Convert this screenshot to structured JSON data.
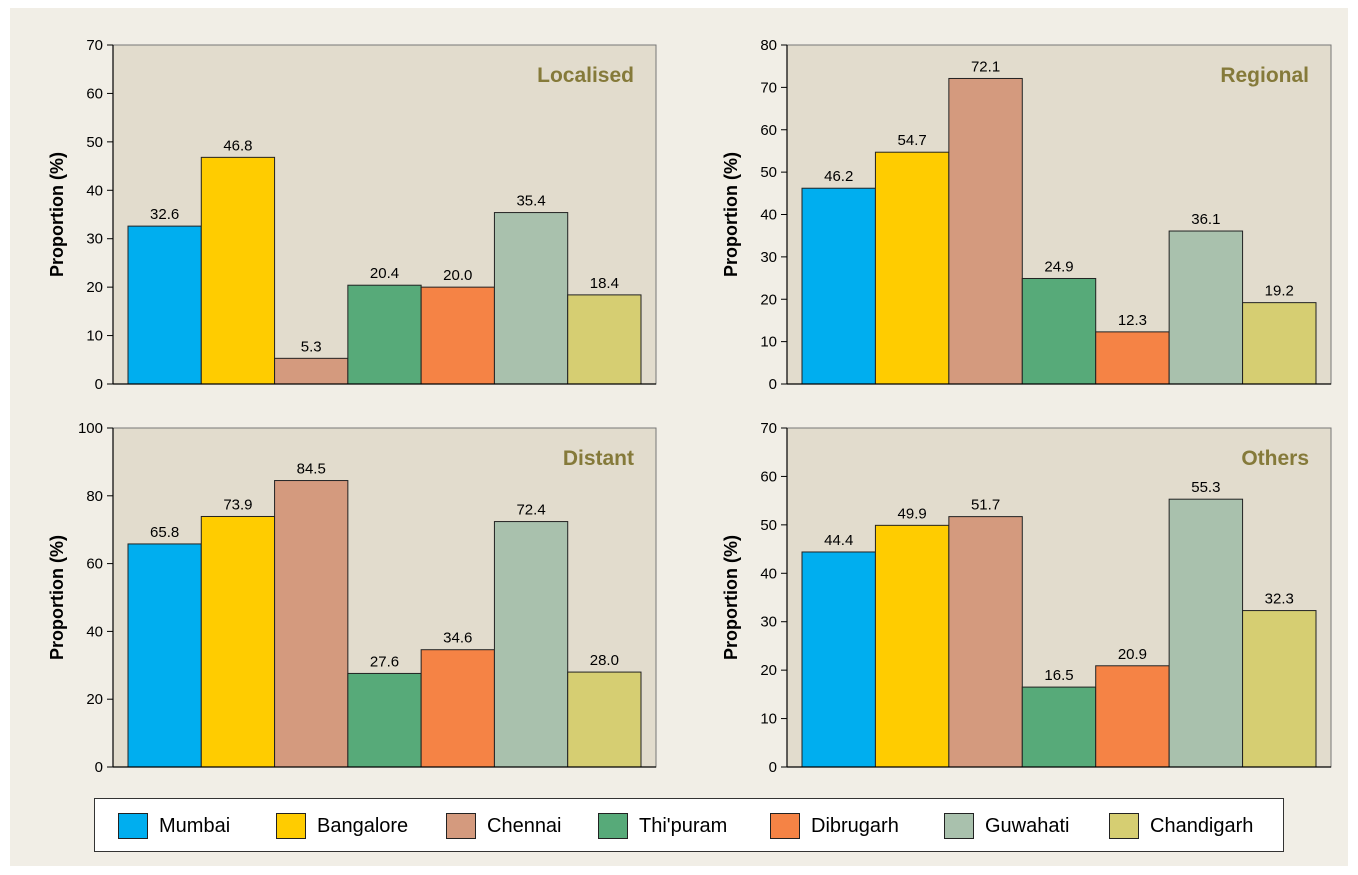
{
  "categories": [
    "Mumbai",
    "Bangalore",
    "Chennai",
    "Thi'puram",
    "Dibrugarh",
    "Guwahati",
    "Chandigarh"
  ],
  "colors": [
    "#00aeef",
    "#ffcc00",
    "#d49a7e",
    "#57aa79",
    "#f58345",
    "#a9c1ad",
    "#d6ce72"
  ],
  "chart_data": [
    {
      "type": "bar",
      "title": "Localised",
      "ylabel": "Proportion (%)",
      "ylim": [
        0,
        70
      ],
      "yticks": [
        0,
        10,
        20,
        30,
        40,
        50,
        60,
        70
      ],
      "categories": [
        "Mumbai",
        "Bangalore",
        "Chennai",
        "Thi'puram",
        "Dibrugarh",
        "Guwahati",
        "Chandigarh"
      ],
      "values": [
        32.6,
        46.8,
        5.3,
        20.4,
        20.0,
        35.4,
        18.4
      ],
      "data_labels": [
        "32.6",
        "46.8",
        "5.3",
        "20.4",
        "20.0",
        "35.4",
        "18.4"
      ]
    },
    {
      "type": "bar",
      "title": "Regional",
      "ylabel": "Proportion (%)",
      "ylim": [
        0,
        80
      ],
      "yticks": [
        0,
        10,
        20,
        30,
        40,
        50,
        60,
        70,
        80
      ],
      "categories": [
        "Mumbai",
        "Bangalore",
        "Chennai",
        "Thi'puram",
        "Dibrugarh",
        "Guwahati",
        "Chandigarh"
      ],
      "values": [
        46.2,
        54.7,
        72.1,
        24.9,
        12.3,
        36.1,
        19.2
      ],
      "data_labels": [
        "46.2",
        "54.7",
        "72.1",
        "24.9",
        "12.3",
        "36.1",
        "19.2"
      ]
    },
    {
      "type": "bar",
      "title": "Distant",
      "ylabel": "Proportion (%)",
      "ylim": [
        0,
        100
      ],
      "yticks": [
        0,
        20,
        40,
        60,
        80,
        100
      ],
      "categories": [
        "Mumbai",
        "Bangalore",
        "Chennai",
        "Thi'puram",
        "Dibrugarh",
        "Guwahati",
        "Chandigarh"
      ],
      "values": [
        65.8,
        73.9,
        84.5,
        27.6,
        34.6,
        72.4,
        28.0
      ],
      "data_labels": [
        "65.8",
        "73.9",
        "84.5",
        "27.6",
        "34.6",
        "72.4",
        "28.0"
      ]
    },
    {
      "type": "bar",
      "title": "Others",
      "ylabel": "Proportion (%)",
      "ylim": [
        0,
        70
      ],
      "yticks": [
        0,
        10,
        20,
        30,
        40,
        50,
        60,
        70
      ],
      "categories": [
        "Mumbai",
        "Bangalore",
        "Chennai",
        "Thi'puram",
        "Dibrugarh",
        "Guwahati",
        "Chandigarh"
      ],
      "values": [
        44.4,
        49.9,
        51.7,
        16.5,
        20.9,
        55.3,
        32.3
      ],
      "data_labels": [
        "44.4",
        "49.9",
        "51.7",
        "16.5",
        "20.9",
        "55.3",
        "32.3"
      ]
    }
  ],
  "legend": {
    "position": "bottom",
    "items": [
      {
        "label": "Mumbai",
        "color": "#00aeef"
      },
      {
        "label": "Bangalore",
        "color": "#ffcc00"
      },
      {
        "label": "Chennai",
        "color": "#d49a7e"
      },
      {
        "label": "Thi'puram",
        "color": "#57aa79"
      },
      {
        "label": "Dibrugarh",
        "color": "#f58345"
      },
      {
        "label": "Guwahati",
        "color": "#a9c1ad"
      },
      {
        "label": "Chandigarh",
        "color": "#d6ce72"
      }
    ]
  }
}
